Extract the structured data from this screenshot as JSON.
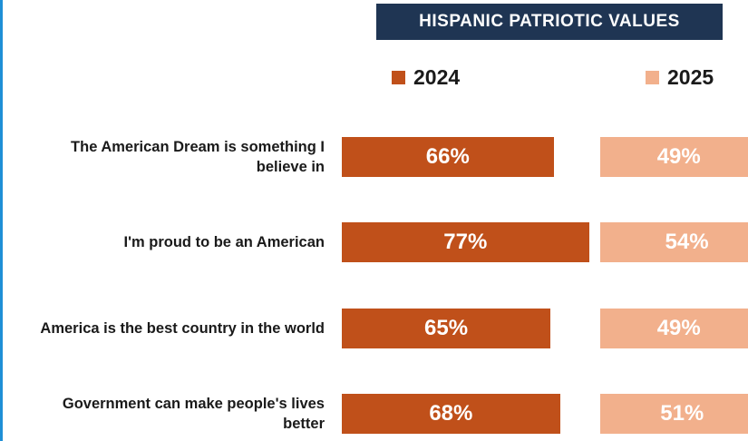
{
  "colors": {
    "accent_2024": "#c0501a",
    "accent_2025": "#f2b08c",
    "title_bg": "#1f3553",
    "left_rule": "#1f8fd6"
  },
  "chart_data": {
    "type": "bar",
    "orientation": "horizontal",
    "title": "HISPANIC PATRIOTIC VALUES",
    "legend_position": "top",
    "grid": false,
    "xlim": [
      0,
      100
    ],
    "categories": [
      "The American Dream is something I believe in",
      "I'm proud to be an American",
      "America is the best country in the world",
      "Government can make people's lives better"
    ],
    "series": [
      {
        "name": "2024",
        "values": [
          66,
          77,
          65,
          68
        ],
        "labels": [
          "66%",
          "77%",
          "65%",
          "68%"
        ]
      },
      {
        "name": "2025",
        "values": [
          49,
          54,
          49,
          51
        ],
        "labels": [
          "49%",
          "54%",
          "49%",
          "51%"
        ]
      }
    ]
  }
}
